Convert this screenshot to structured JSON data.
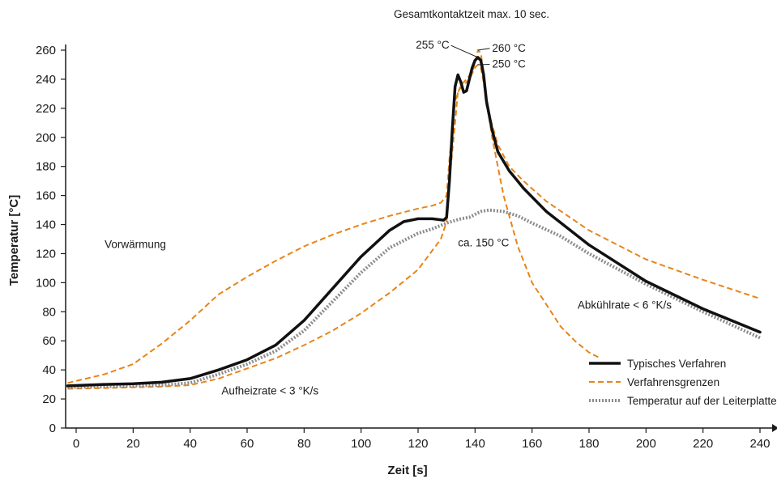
{
  "chart_data": {
    "type": "line",
    "title": "Gesamtkontaktzeit max. 10 sec.",
    "xlabel": "Zeit [s]",
    "ylabel": "Temperatur [°C]",
    "xlim": [
      -3,
      243
    ],
    "ylim": [
      0,
      265
    ],
    "x_ticks": [
      0,
      20,
      40,
      60,
      80,
      100,
      120,
      140,
      160,
      180,
      200,
      220,
      240
    ],
    "y_ticks": [
      0,
      20,
      40,
      60,
      80,
      100,
      120,
      140,
      160,
      180,
      200,
      220,
      240,
      260
    ],
    "grid": false,
    "legend_position": "bottom-right",
    "series": [
      {
        "name": "Typisches Verfahren",
        "color": "#111111",
        "style": "solid",
        "points": [
          [
            -3,
            29
          ],
          [
            10,
            30
          ],
          [
            20,
            30.5
          ],
          [
            30,
            31.5
          ],
          [
            40,
            34
          ],
          [
            50,
            40
          ],
          [
            60,
            47
          ],
          [
            70,
            57
          ],
          [
            80,
            74
          ],
          [
            90,
            96
          ],
          [
            100,
            118
          ],
          [
            110,
            136
          ],
          [
            115,
            142
          ],
          [
            120,
            144
          ],
          [
            125,
            144
          ],
          [
            129,
            143
          ],
          [
            130,
            145
          ],
          [
            131,
            170
          ],
          [
            132,
            205
          ],
          [
            133,
            235
          ],
          [
            134,
            243
          ],
          [
            135,
            238
          ],
          [
            136,
            231
          ],
          [
            137,
            232
          ],
          [
            138,
            240
          ],
          [
            139,
            248
          ],
          [
            140,
            253
          ],
          [
            141,
            255
          ],
          [
            142,
            253
          ],
          [
            143,
            243
          ],
          [
            144,
            225
          ],
          [
            146,
            205
          ],
          [
            148,
            190
          ],
          [
            152,
            177
          ],
          [
            157,
            165
          ],
          [
            165,
            149
          ],
          [
            180,
            126
          ],
          [
            200,
            101
          ],
          [
            220,
            82
          ],
          [
            240,
            66
          ]
        ]
      },
      {
        "name": "Verfahrensgrenzen",
        "color": "#e8841a",
        "style": "dashed",
        "points": [
          [
            -3,
            31
          ],
          [
            10,
            37
          ],
          [
            20,
            44
          ],
          [
            30,
            58
          ],
          [
            40,
            74
          ],
          [
            50,
            92
          ],
          [
            60,
            104
          ],
          [
            70,
            115
          ],
          [
            80,
            125
          ],
          [
            90,
            133
          ],
          [
            100,
            140
          ],
          [
            110,
            146
          ],
          [
            120,
            151
          ],
          [
            125,
            153
          ],
          [
            128,
            155
          ],
          [
            130,
            160
          ],
          [
            131,
            185
          ],
          [
            133,
            225
          ],
          [
            135,
            236
          ],
          [
            137,
            240
          ],
          [
            139,
            245
          ],
          [
            140,
            251
          ],
          [
            141,
            260
          ],
          [
            142,
            258
          ],
          [
            143,
            245
          ],
          [
            144,
            225
          ],
          [
            146,
            200
          ],
          [
            150,
            160
          ],
          [
            155,
            125
          ],
          [
            160,
            100
          ],
          [
            165,
            85
          ],
          [
            170,
            70
          ],
          [
            175,
            60
          ],
          [
            180,
            52
          ],
          [
            184,
            48
          ]
        ]
      },
      {
        "name": "Verfahrensgrenzen",
        "color": "#e8841a",
        "style": "dashed",
        "points": [
          [
            -3,
            27
          ],
          [
            10,
            27.5
          ],
          [
            20,
            28
          ],
          [
            30,
            28.5
          ],
          [
            40,
            29.5
          ],
          [
            50,
            34
          ],
          [
            60,
            41
          ],
          [
            70,
            48
          ],
          [
            80,
            57
          ],
          [
            90,
            67
          ],
          [
            100,
            79
          ],
          [
            110,
            93
          ],
          [
            120,
            109
          ],
          [
            128,
            130
          ],
          [
            130,
            142
          ],
          [
            131,
            170
          ],
          [
            133,
            210
          ],
          [
            134,
            232
          ],
          [
            136,
            236
          ],
          [
            138,
            240
          ],
          [
            140,
            248
          ],
          [
            141,
            250
          ],
          [
            142,
            248
          ],
          [
            143,
            238
          ],
          [
            144,
            222
          ],
          [
            148,
            195
          ],
          [
            152,
            180
          ],
          [
            157,
            170
          ],
          [
            165,
            156
          ],
          [
            180,
            136
          ],
          [
            200,
            116
          ],
          [
            220,
            102
          ],
          [
            240,
            89
          ]
        ]
      },
      {
        "name": "Temperatur auf der Leiterplatte",
        "color": "#8c8c8c",
        "style": "dotted",
        "points": [
          [
            -3,
            28
          ],
          [
            10,
            28.5
          ],
          [
            20,
            29
          ],
          [
            30,
            29.5
          ],
          [
            40,
            31
          ],
          [
            50,
            37
          ],
          [
            60,
            44
          ],
          [
            70,
            53
          ],
          [
            80,
            67
          ],
          [
            90,
            87
          ],
          [
            100,
            107
          ],
          [
            110,
            124
          ],
          [
            120,
            134
          ],
          [
            125,
            137
          ],
          [
            130,
            141
          ],
          [
            135,
            144
          ],
          [
            138,
            145
          ],
          [
            140,
            147
          ],
          [
            142,
            149
          ],
          [
            145,
            150
          ],
          [
            150,
            149
          ],
          [
            155,
            146
          ],
          [
            160,
            141
          ],
          [
            170,
            132
          ],
          [
            180,
            120
          ],
          [
            200,
            99
          ],
          [
            220,
            80
          ],
          [
            240,
            62
          ]
        ]
      }
    ],
    "annotations": [
      {
        "text": "Vorwärmung",
        "x": 10,
        "y": 124,
        "anchor": "start"
      },
      {
        "text": "Aufheizrate < 3 °K/s",
        "x": 51,
        "y": 23,
        "anchor": "start"
      },
      {
        "text": "ca. 150 °C",
        "x": 134,
        "y": 125,
        "anchor": "start"
      },
      {
        "text": "Abkühlrate < 6 °K/s",
        "x": 176,
        "y": 82,
        "anchor": "start"
      },
      {
        "text": "255 °C",
        "x": 131,
        "y": 261,
        "anchor": "end",
        "leader_to": [
          141,
          255
        ]
      },
      {
        "text": "260 °C",
        "x": 146,
        "y": 259,
        "anchor": "start",
        "leader_to": [
          141,
          260
        ]
      },
      {
        "text": "250 °C",
        "x": 146,
        "y": 248,
        "anchor": "start",
        "leader_to": [
          141,
          250
        ]
      }
    ]
  }
}
